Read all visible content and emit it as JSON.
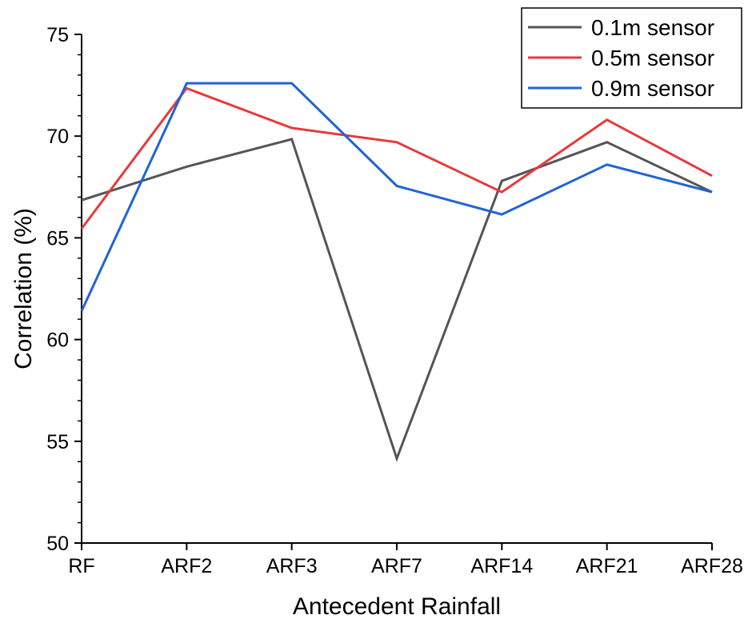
{
  "chart_data": {
    "type": "line",
    "categories": [
      "RF",
      "ARF2",
      "ARF3",
      "ARF7",
      "ARF14",
      "ARF21",
      "ARF28"
    ],
    "series": [
      {
        "name": "0.1m sensor",
        "color": "#555555",
        "values": [
          66.85,
          68.5,
          69.85,
          54.15,
          67.8,
          69.7,
          67.25
        ]
      },
      {
        "name": "0.5m sensor",
        "color": "#e8393b",
        "values": [
          65.45,
          72.35,
          70.4,
          69.7,
          67.25,
          70.8,
          68.05
        ]
      },
      {
        "name": "0.9m sensor",
        "color": "#1f64d6",
        "values": [
          61.4,
          72.6,
          72.6,
          67.55,
          66.15,
          68.6,
          67.25
        ]
      }
    ],
    "xlabel": "Antecedent Rainfall",
    "ylabel": "Correlation (%)",
    "ylim": [
      50,
      75
    ],
    "yticks": [
      "50",
      "55",
      "60",
      "65",
      "70",
      "75"
    ],
    "grid": false,
    "legend_position": "top-right"
  }
}
